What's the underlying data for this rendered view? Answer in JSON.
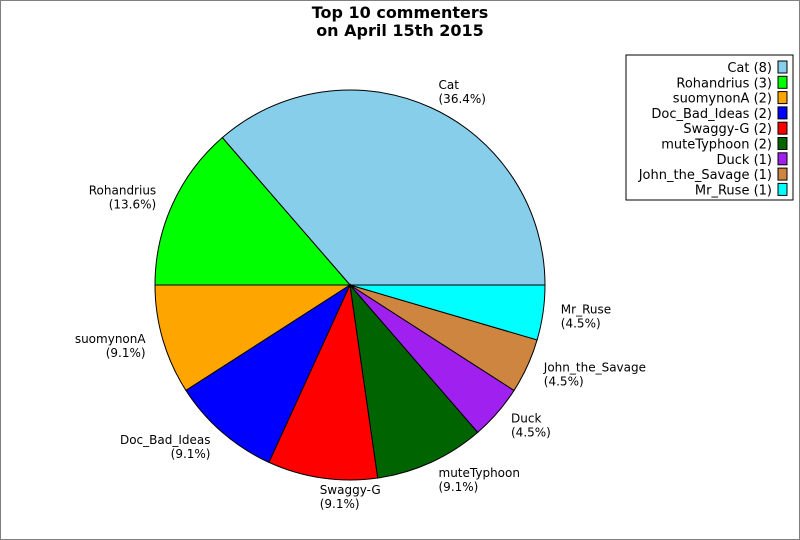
{
  "chart_data": {
    "type": "pie",
    "title_lines": [
      "Top 10 commenters",
      "on April 15th 2015"
    ],
    "slices": [
      {
        "name": "Cat",
        "count": 8,
        "percent": "36.4%",
        "color": "#87CEEB",
        "legend": "Cat (8)"
      },
      {
        "name": "Rohandrius",
        "count": 3,
        "percent": "13.6%",
        "color": "#00FF00",
        "legend": "Rohandrius (3)"
      },
      {
        "name": "suomynonA",
        "count": 2,
        "percent": "9.1%",
        "color": "#FFA500",
        "legend": "suomynonA (2)"
      },
      {
        "name": "Doc_Bad_Ideas",
        "count": 2,
        "percent": "9.1%",
        "color": "#0000FF",
        "legend": "Doc_Bad_Ideas (2)"
      },
      {
        "name": "Swaggy-G",
        "count": 2,
        "percent": "9.1%",
        "color": "#FF0000",
        "legend": "Swaggy-G (2)"
      },
      {
        "name": "muteTyphoon",
        "count": 2,
        "percent": "9.1%",
        "color": "#006400",
        "legend": "muteTyphoon (2)"
      },
      {
        "name": "Duck",
        "count": 1,
        "percent": "4.5%",
        "color": "#A020F0",
        "legend": "Duck (1)"
      },
      {
        "name": "John_the_Savage",
        "count": 1,
        "percent": "4.5%",
        "color": "#CD853F",
        "legend": "John_the_Savage (1)"
      },
      {
        "name": "Mr_Ruse",
        "count": 1,
        "percent": "4.5%",
        "color": "#00FFFF",
        "legend": "Mr_Ruse (1)"
      }
    ],
    "legend_position": "top-right",
    "start_angle": "3 o'clock, counterclockwise"
  }
}
